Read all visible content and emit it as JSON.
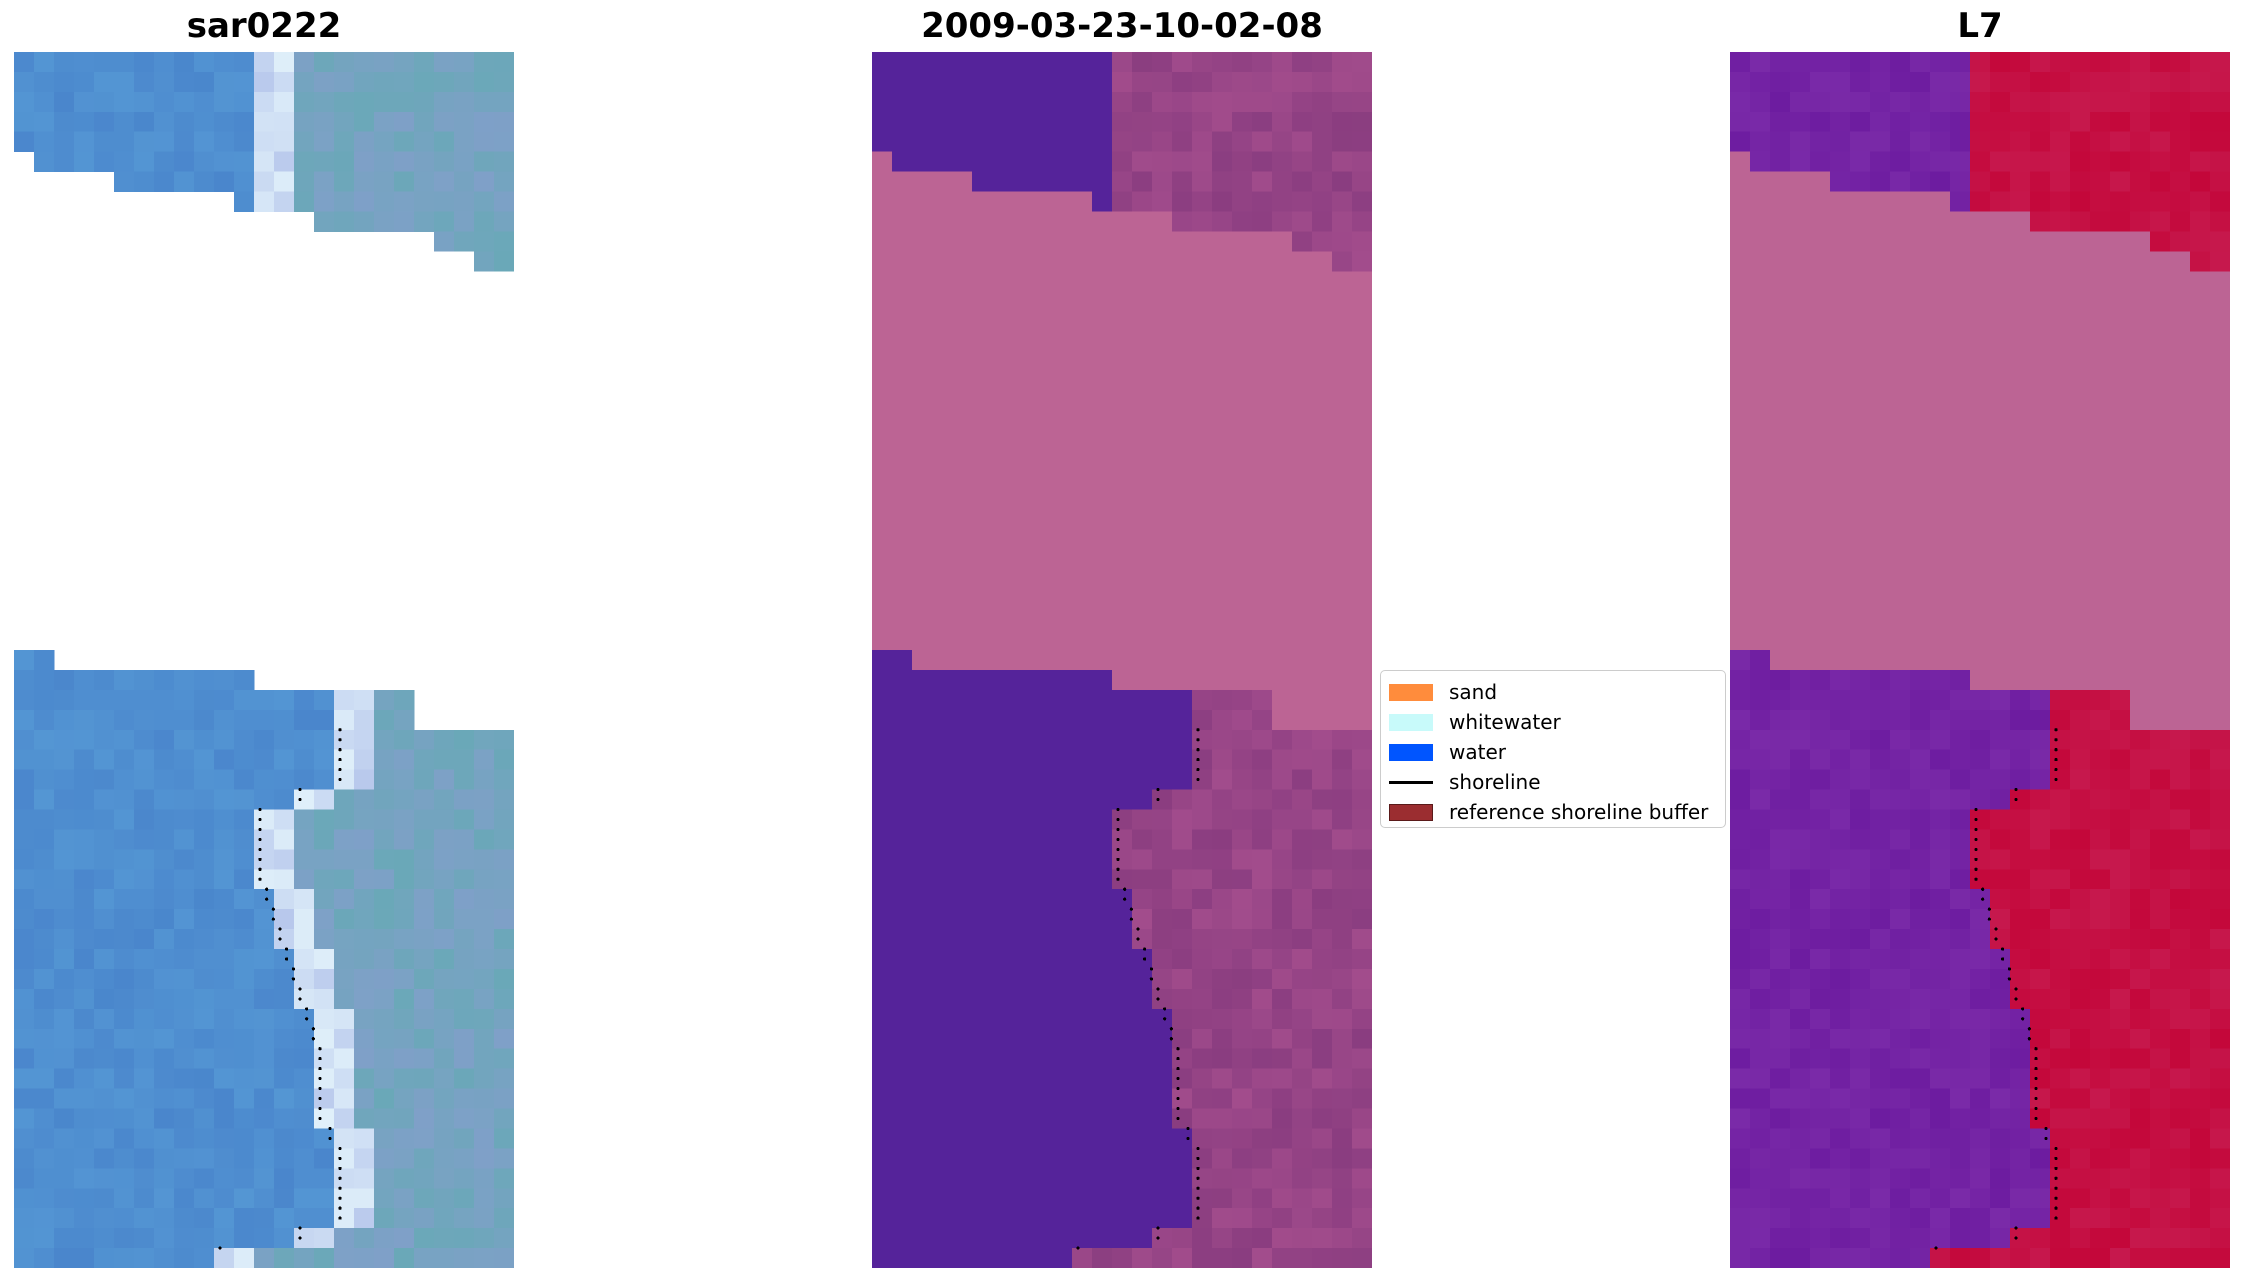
{
  "figure": {
    "panels": [
      {
        "title": "sar0222",
        "kind": "rgb"
      },
      {
        "title": "2009-03-23-10-02-08",
        "kind": "classified"
      },
      {
        "title": "L7",
        "kind": "mndwi"
      }
    ]
  },
  "legend": {
    "items": [
      {
        "label": "sand",
        "type": "patch",
        "color": "#ff8c3c"
      },
      {
        "label": "whitewater",
        "type": "patch",
        "color": "#c8fafa"
      },
      {
        "label": "water",
        "type": "patch",
        "color": "#0055ff"
      },
      {
        "label": "shoreline",
        "type": "line",
        "color": "#000000"
      },
      {
        "label": "reference shoreline buffer",
        "type": "patch",
        "color": "#9b2d30",
        "edge": "#5a1a1a"
      }
    ]
  },
  "colors": {
    "cloud_mask": "#bc6494",
    "classified_water": "#55239a",
    "rgb_water": "#4d8ed0",
    "mndwi_water": "#6d1ca0",
    "mndwi_land": "#c4073a"
  }
}
